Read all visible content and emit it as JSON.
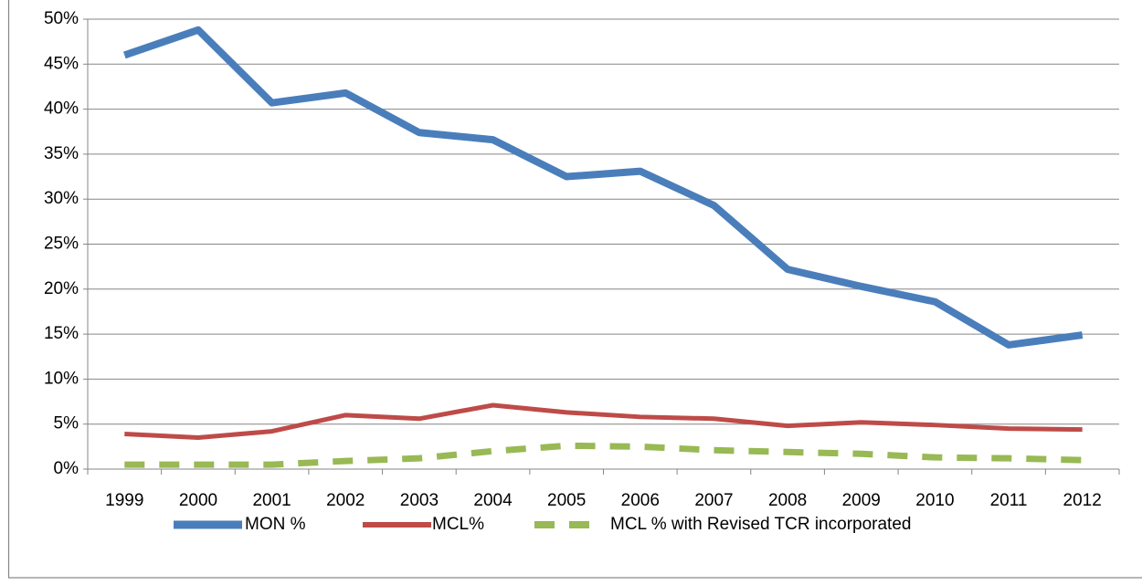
{
  "chart_data": {
    "type": "line",
    "categories": [
      "1999",
      "2000",
      "2001",
      "2002",
      "2003",
      "2004",
      "2005",
      "2006",
      "2007",
      "2008",
      "2009",
      "2010",
      "2011",
      "2012"
    ],
    "series": [
      {
        "name": "MON %",
        "color": "#4a7ebb",
        "values": [
          46,
          48.8,
          40.7,
          41.8,
          37.4,
          36.6,
          32.5,
          33.1,
          29.3,
          22.2,
          20.3,
          18.6,
          13.8,
          14.9
        ]
      },
      {
        "name": "MCL%",
        "color": "#be4b48",
        "values": [
          3.9,
          3.5,
          4.2,
          6.0,
          5.6,
          7.1,
          6.3,
          5.8,
          5.6,
          4.8,
          5.2,
          4.9,
          4.5,
          4.4
        ]
      },
      {
        "name": "MCL % with Revised TCR incorporated",
        "color": "#98b954",
        "dashed": true,
        "values": [
          0.5,
          0.5,
          0.5,
          0.9,
          1.2,
          2.0,
          2.6,
          2.5,
          2.1,
          1.9,
          1.7,
          1.3,
          1.2,
          1.0
        ]
      }
    ],
    "ylim": [
      0,
      50
    ],
    "yticks": [
      {
        "value": 0,
        "label": "0%"
      },
      {
        "value": 5,
        "label": "5%"
      },
      {
        "value": 10,
        "label": "10%"
      },
      {
        "value": 15,
        "label": "15%"
      },
      {
        "value": 20,
        "label": "20%"
      },
      {
        "value": 25,
        "label": "25%"
      },
      {
        "value": 30,
        "label": "30%"
      },
      {
        "value": 35,
        "label": "35%"
      },
      {
        "value": 40,
        "label": "40%"
      },
      {
        "value": 45,
        "label": "45%"
      },
      {
        "value": 50,
        "label": "50%"
      }
    ],
    "grid": true,
    "legend": "bottom"
  }
}
